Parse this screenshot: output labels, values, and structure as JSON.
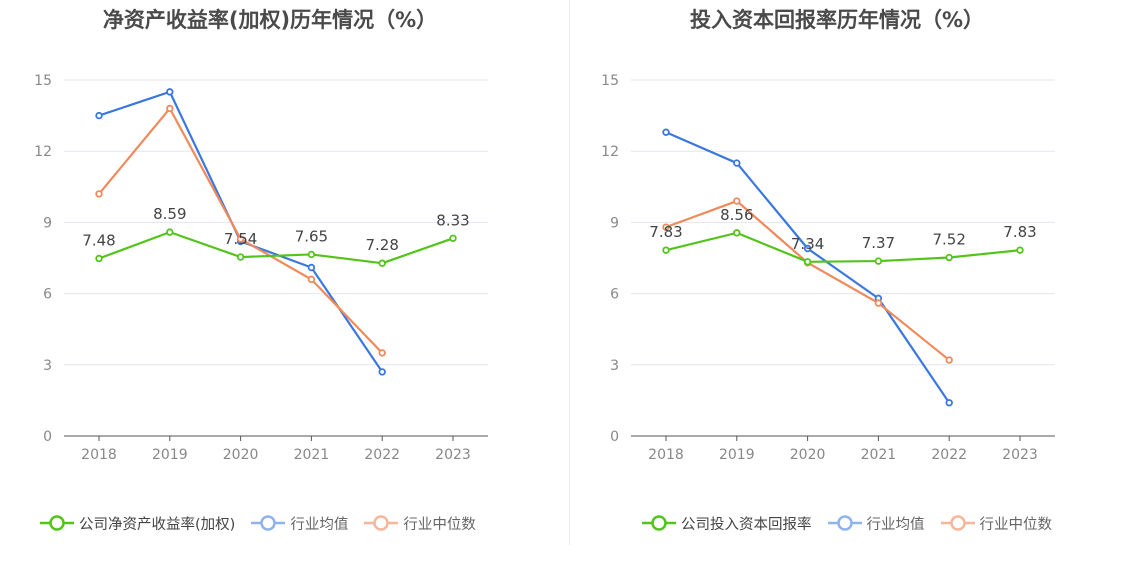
{
  "chart_data": [
    {
      "type": "line",
      "title": "净资产收益率(加权)历年情况（%）",
      "categories": [
        "2018",
        "2019",
        "2020",
        "2021",
        "2022",
        "2023"
      ],
      "yticks": [
        "0",
        "3",
        "6",
        "9",
        "12",
        "15"
      ],
      "ylim": [
        0,
        15
      ],
      "grid": true,
      "legend_position": "bottom",
      "series": [
        {
          "name": "公司净资产收益率(加权)",
          "color": "#52c41a",
          "values": [
            7.48,
            8.59,
            7.54,
            7.65,
            7.28,
            8.33
          ],
          "labels": [
            "7.48",
            "8.59",
            "7.54",
            "7.65",
            "7.28",
            "8.33"
          ]
        },
        {
          "name": "行业均值",
          "color": "#3a78e0",
          "values": [
            13.5,
            14.5,
            8.2,
            7.1,
            2.7,
            null
          ]
        },
        {
          "name": "行业中位数",
          "color": "#f08a5d",
          "values": [
            10.2,
            13.8,
            8.3,
            6.6,
            3.5,
            null
          ]
        }
      ]
    },
    {
      "type": "line",
      "title": "投入资本回报率历年情况（%）",
      "categories": [
        "2018",
        "2019",
        "2020",
        "2021",
        "2022",
        "2023"
      ],
      "yticks": [
        "0",
        "3",
        "6",
        "9",
        "12",
        "15"
      ],
      "ylim": [
        0,
        15
      ],
      "grid": true,
      "legend_position": "bottom",
      "series": [
        {
          "name": "公司投入资本回报率",
          "color": "#52c41a",
          "values": [
            7.83,
            8.56,
            7.34,
            7.37,
            7.52,
            7.83
          ],
          "labels": [
            "7.83",
            "8.56",
            "7.34",
            "7.37",
            "7.52",
            "7.83"
          ]
        },
        {
          "name": "行业均值",
          "color": "#3a78e0",
          "values": [
            12.8,
            11.5,
            7.9,
            5.8,
            1.4,
            null
          ]
        },
        {
          "name": "行业中位数",
          "color": "#f08a5d",
          "values": [
            8.8,
            9.9,
            7.3,
            5.6,
            3.2,
            null
          ]
        }
      ]
    }
  ]
}
